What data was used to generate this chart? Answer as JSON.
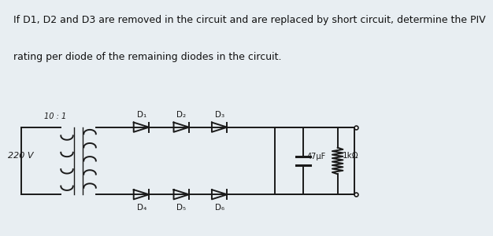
{
  "bg_top_color": "#e8eef2",
  "bg_circuit_color": "#d8dfe5",
  "text_color": "#111111",
  "line_color": "#1a1a1a",
  "question_line1": "If D1, D2 and D3 are removed in the circuit and are replaced by short circuit, determine the PIV",
  "question_line2": "rating per diode of the remaining diodes in the circuit.",
  "text_fontsize": 9.0,
  "label_10_1": "10 : 1",
  "label_220v": "220 V",
  "label_cap": "47μF",
  "label_res": "1kΩ",
  "diode_labels_top": [
    "D₁",
    "D₂",
    "D₃"
  ],
  "diode_labels_bot": [
    "D₄",
    "D₅",
    "D₆"
  ]
}
